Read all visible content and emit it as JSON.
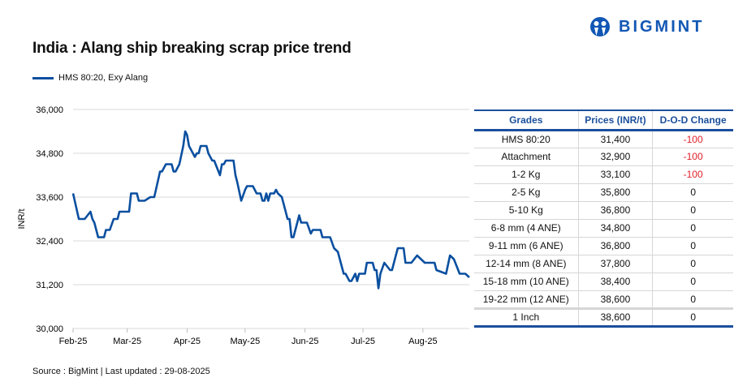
{
  "title": "India : Alang ship breaking scrap price trend",
  "logo": {
    "text": "BIGMINT",
    "color": "#1257b5"
  },
  "source": "Source : BigMint | Last updated : 29-08-2025",
  "chart_data": {
    "type": "line",
    "title": "India : Alang ship breaking scrap price trend",
    "ylabel": "INR/t",
    "xlabel": "",
    "ylim": [
      30000,
      36000
    ],
    "yticks": [
      30000,
      31200,
      32400,
      33600,
      34800,
      36000
    ],
    "ytick_labels": [
      "30,000",
      "31,200",
      "32,400",
      "33,600",
      "34,800",
      "36,000"
    ],
    "xlim": [
      "2025-02-01",
      "2025-08-25"
    ],
    "xticks": [
      "2025-02-01",
      "2025-03-01",
      "2025-04-01",
      "2025-05-01",
      "2025-06-01",
      "2025-07-01",
      "2025-08-01"
    ],
    "xtick_labels": [
      "Feb-25",
      "Mar-25",
      "Apr-25",
      "May-25",
      "Jun-25",
      "Jul-25",
      "Aug-25"
    ],
    "grid": true,
    "legend": "top-left",
    "series": [
      {
        "name": "HMS 80:20, Exy Alang",
        "color": "#0a4fa0",
        "x": [
          "2025-02-01",
          "2025-02-04",
          "2025-02-07",
          "2025-02-10",
          "2025-02-11",
          "2025-02-12",
          "2025-02-14",
          "2025-02-17",
          "2025-02-18",
          "2025-02-20",
          "2025-02-22",
          "2025-02-24",
          "2025-02-25",
          "2025-03-02",
          "2025-03-03",
          "2025-03-06",
          "2025-03-07",
          "2025-03-10",
          "2025-03-13",
          "2025-03-15",
          "2025-03-18",
          "2025-03-19",
          "2025-03-21",
          "2025-03-24",
          "2025-03-25",
          "2025-03-26",
          "2025-03-28",
          "2025-03-30",
          "2025-03-31",
          "2025-04-01",
          "2025-04-02",
          "2025-04-05",
          "2025-04-06",
          "2025-04-07",
          "2025-04-08",
          "2025-04-11",
          "2025-04-12",
          "2025-04-14",
          "2025-04-15",
          "2025-04-18",
          "2025-04-19",
          "2025-04-20",
          "2025-04-21",
          "2025-04-25",
          "2025-04-26",
          "2025-04-27",
          "2025-04-29",
          "2025-05-01",
          "2025-05-02",
          "2025-05-05",
          "2025-05-07",
          "2025-05-09",
          "2025-05-10",
          "2025-05-11",
          "2025-05-12",
          "2025-05-13",
          "2025-05-14",
          "2025-05-16",
          "2025-05-17",
          "2025-05-18",
          "2025-05-20",
          "2025-05-21",
          "2025-05-23",
          "2025-05-24",
          "2025-05-25",
          "2025-05-26",
          "2025-05-29",
          "2025-05-30",
          "2025-06-02",
          "2025-06-04",
          "2025-06-05",
          "2025-06-09",
          "2025-06-10",
          "2025-06-14",
          "2025-06-16",
          "2025-06-18",
          "2025-06-20",
          "2025-06-21",
          "2025-06-22",
          "2025-06-24",
          "2025-06-25",
          "2025-06-27",
          "2025-06-28",
          "2025-06-29",
          "2025-07-02",
          "2025-07-03",
          "2025-07-06",
          "2025-07-07",
          "2025-07-08",
          "2025-07-09",
          "2025-07-10",
          "2025-07-12",
          "2025-07-15",
          "2025-07-16",
          "2025-07-19",
          "2025-07-22",
          "2025-07-23",
          "2025-07-26",
          "2025-07-29",
          "2025-08-02",
          "2025-08-07",
          "2025-08-08",
          "2025-08-13",
          "2025-08-15",
          "2025-08-17",
          "2025-08-20",
          "2025-08-23",
          "2025-08-25"
        ],
        "values": [
          33700,
          33000,
          33000,
          33200,
          33000,
          32900,
          32500,
          32500,
          32700,
          32700,
          33000,
          33000,
          33200,
          33200,
          33700,
          33700,
          33500,
          33500,
          33600,
          33600,
          34300,
          34300,
          34500,
          34500,
          34300,
          34300,
          34500,
          35000,
          35400,
          35300,
          35000,
          34700,
          34800,
          34800,
          35000,
          35000,
          34800,
          34600,
          34600,
          34200,
          34500,
          34500,
          34600,
          34600,
          34200,
          34000,
          33500,
          33800,
          33900,
          33900,
          33700,
          33700,
          33500,
          33500,
          33700,
          33500,
          33700,
          33700,
          33800,
          33700,
          33600,
          33400,
          33000,
          33000,
          32500,
          32500,
          33100,
          32900,
          32900,
          32600,
          32700,
          32700,
          32500,
          32500,
          32200,
          32100,
          31700,
          31500,
          31500,
          31300,
          31300,
          31500,
          31300,
          31500,
          31500,
          31800,
          31800,
          31600,
          31600,
          31100,
          31500,
          31800,
          31600,
          31600,
          32200,
          32200,
          31800,
          31800,
          32000,
          31800,
          31800,
          31600,
          31500,
          32000,
          31900,
          31500,
          31500,
          31400
        ]
      }
    ]
  },
  "table": {
    "headers": [
      "Grades",
      "Prices (INR/t)",
      "D-O-D Change"
    ],
    "rows": [
      [
        "HMS 80:20",
        "31,400",
        "-100"
      ],
      [
        "Attachment",
        "32,900",
        "-100"
      ],
      [
        "1-2 Kg",
        "33,100",
        "-100"
      ],
      [
        "2-5 Kg",
        "35,800",
        "0"
      ],
      [
        "5-10 Kg",
        "36,800",
        "0"
      ],
      [
        "6-8 mm (4 ANE)",
        "34,800",
        "0"
      ],
      [
        "9-11 mm (6 ANE)",
        "36,800",
        "0"
      ],
      [
        "12-14 mm (8 ANE)",
        "37,800",
        "0"
      ],
      [
        "15-18 mm (10 ANE)",
        "38,400",
        "0"
      ],
      [
        "19-22 mm (12 ANE)",
        "38,600",
        "0"
      ],
      [
        "1 Inch",
        "38,600",
        "0"
      ]
    ],
    "negative_color": "#e0202a"
  }
}
